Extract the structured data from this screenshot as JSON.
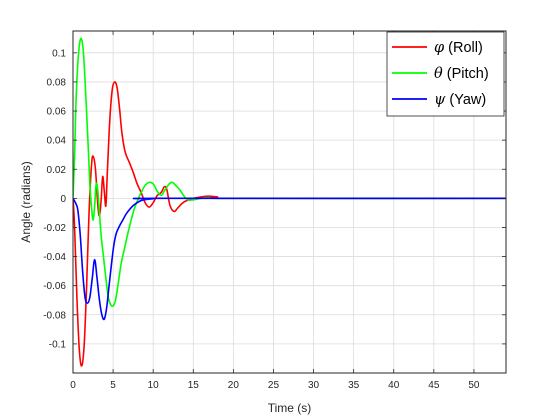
{
  "chart_data": {
    "type": "line",
    "xlabel": "Time (s)",
    "ylabel": "Angle (radians)",
    "xlim": [
      0,
      54
    ],
    "ylim": [
      -0.12,
      0.115
    ],
    "xticks": [
      0,
      5,
      10,
      15,
      20,
      25,
      30,
      35,
      40,
      45,
      50
    ],
    "xtick_labels": [
      "0",
      "5",
      "10",
      "15",
      "20",
      "25",
      "30",
      "35",
      "40",
      "45",
      "50"
    ],
    "yticks": [
      0.1,
      0.08,
      0.06,
      0.04,
      0.02,
      0,
      -0.02,
      -0.04,
      -0.06,
      -0.08,
      -0.1
    ],
    "ytick_labels": [
      "0.1",
      "0.08",
      "0.06",
      "0.04",
      "0.02",
      "0",
      "-0.02",
      "-0.04",
      "-0.06",
      "-0.08",
      "-0.1"
    ],
    "grid": true,
    "legend_position": "top-right",
    "series": [
      {
        "symbol": "φ",
        "name": "(Roll)",
        "color": "#ff0000",
        "points": [
          [
            0,
            0
          ],
          [
            0.2,
            -0.02
          ],
          [
            0.5,
            -0.07
          ],
          [
            0.8,
            -0.105
          ],
          [
            1.1,
            -0.115
          ],
          [
            1.4,
            -0.1
          ],
          [
            1.7,
            -0.06
          ],
          [
            2.0,
            -0.01
          ],
          [
            2.3,
            0.022
          ],
          [
            2.5,
            0.029
          ],
          [
            2.8,
            0.02
          ],
          [
            3.1,
            -0.005
          ],
          [
            3.3,
            -0.012
          ],
          [
            3.5,
            -0.002
          ],
          [
            3.7,
            0.015
          ],
          [
            3.9,
            0.005
          ],
          [
            4.1,
            -0.005
          ],
          [
            4.3,
            0.02
          ],
          [
            4.6,
            0.055
          ],
          [
            4.9,
            0.075
          ],
          [
            5.2,
            0.08
          ],
          [
            5.5,
            0.076
          ],
          [
            5.8,
            0.062
          ],
          [
            6.1,
            0.045
          ],
          [
            6.5,
            0.032
          ],
          [
            7.0,
            0.025
          ],
          [
            7.5,
            0.018
          ],
          [
            8.0,
            0.01
          ],
          [
            8.5,
            0.004
          ],
          [
            9.0,
            -0.003
          ],
          [
            9.5,
            -0.006
          ],
          [
            10.0,
            -0.003
          ],
          [
            10.5,
            0.002
          ],
          [
            11.0,
            0.004
          ],
          [
            11.4,
            0.008
          ],
          [
            11.7,
            0.006
          ],
          [
            12.1,
            -0.005
          ],
          [
            12.6,
            -0.009
          ],
          [
            13.0,
            -0.007
          ],
          [
            13.5,
            -0.004
          ],
          [
            14.0,
            -0.002
          ],
          [
            15.0,
            0
          ],
          [
            16.0,
            0.001
          ],
          [
            17.0,
            0.0015
          ],
          [
            18.0,
            0.001
          ],
          [
            20.0,
            0
          ],
          [
            54,
            0
          ]
        ]
      },
      {
        "symbol": "θ",
        "name": "(Pitch)",
        "color": "#00ff00",
        "points": [
          [
            0,
            0
          ],
          [
            0.2,
            0.03
          ],
          [
            0.4,
            0.07
          ],
          [
            0.7,
            0.1
          ],
          [
            1.0,
            0.11
          ],
          [
            1.3,
            0.1
          ],
          [
            1.6,
            0.07
          ],
          [
            1.9,
            0.035
          ],
          [
            2.1,
            0.01
          ],
          [
            2.3,
            -0.005
          ],
          [
            2.5,
            -0.015
          ],
          [
            2.7,
            -0.005
          ],
          [
            2.9,
            0.01
          ],
          [
            3.1,
            0.005
          ],
          [
            3.3,
            -0.01
          ],
          [
            3.5,
            -0.025
          ],
          [
            3.8,
            -0.04
          ],
          [
            4.1,
            -0.055
          ],
          [
            4.4,
            -0.068
          ],
          [
            4.7,
            -0.073
          ],
          [
            5.0,
            -0.074
          ],
          [
            5.3,
            -0.07
          ],
          [
            5.6,
            -0.06
          ],
          [
            6.0,
            -0.045
          ],
          [
            6.4,
            -0.035
          ],
          [
            6.8,
            -0.025
          ],
          [
            7.2,
            -0.016
          ],
          [
            7.6,
            -0.008
          ],
          [
            8.0,
            -0.002
          ],
          [
            8.5,
            0.004
          ],
          [
            9.0,
            0.009
          ],
          [
            9.5,
            0.011
          ],
          [
            10.0,
            0.01
          ],
          [
            10.5,
            0.005
          ],
          [
            11.0,
            0.002
          ],
          [
            11.5,
            0.006
          ],
          [
            12.0,
            0.01
          ],
          [
            12.4,
            0.011
          ],
          [
            12.8,
            0.009
          ],
          [
            13.3,
            0.006
          ],
          [
            13.8,
            0.002
          ],
          [
            14.3,
            -0.001
          ],
          [
            15.0,
            -0.001
          ],
          [
            16.0,
            0
          ],
          [
            17.0,
            0.0005
          ],
          [
            20.0,
            0
          ],
          [
            54,
            0
          ]
        ]
      },
      {
        "symbol": "ψ",
        "name": "(Yaw)",
        "color": "#0000ff",
        "points": [
          [
            0,
            0
          ],
          [
            0.3,
            -0.003
          ],
          [
            0.6,
            -0.008
          ],
          [
            0.9,
            -0.025
          ],
          [
            1.2,
            -0.05
          ],
          [
            1.5,
            -0.068
          ],
          [
            1.8,
            -0.072
          ],
          [
            2.1,
            -0.068
          ],
          [
            2.4,
            -0.055
          ],
          [
            2.7,
            -0.042
          ],
          [
            3.0,
            -0.055
          ],
          [
            3.3,
            -0.07
          ],
          [
            3.6,
            -0.08
          ],
          [
            3.9,
            -0.083
          ],
          [
            4.2,
            -0.075
          ],
          [
            4.5,
            -0.06
          ],
          [
            4.8,
            -0.045
          ],
          [
            5.1,
            -0.032
          ],
          [
            5.4,
            -0.024
          ],
          [
            5.8,
            -0.019
          ],
          [
            6.2,
            -0.015
          ],
          [
            6.6,
            -0.011
          ],
          [
            7.0,
            -0.008
          ],
          [
            7.5,
            -0.005
          ],
          [
            8.0,
            -0.003
          ],
          [
            8.5,
            -0.0015
          ],
          [
            9.0,
            -0.0008
          ],
          [
            10.0,
            -0.0003
          ],
          [
            11.0,
            0
          ],
          [
            54,
            0
          ]
        ]
      }
    ]
  }
}
